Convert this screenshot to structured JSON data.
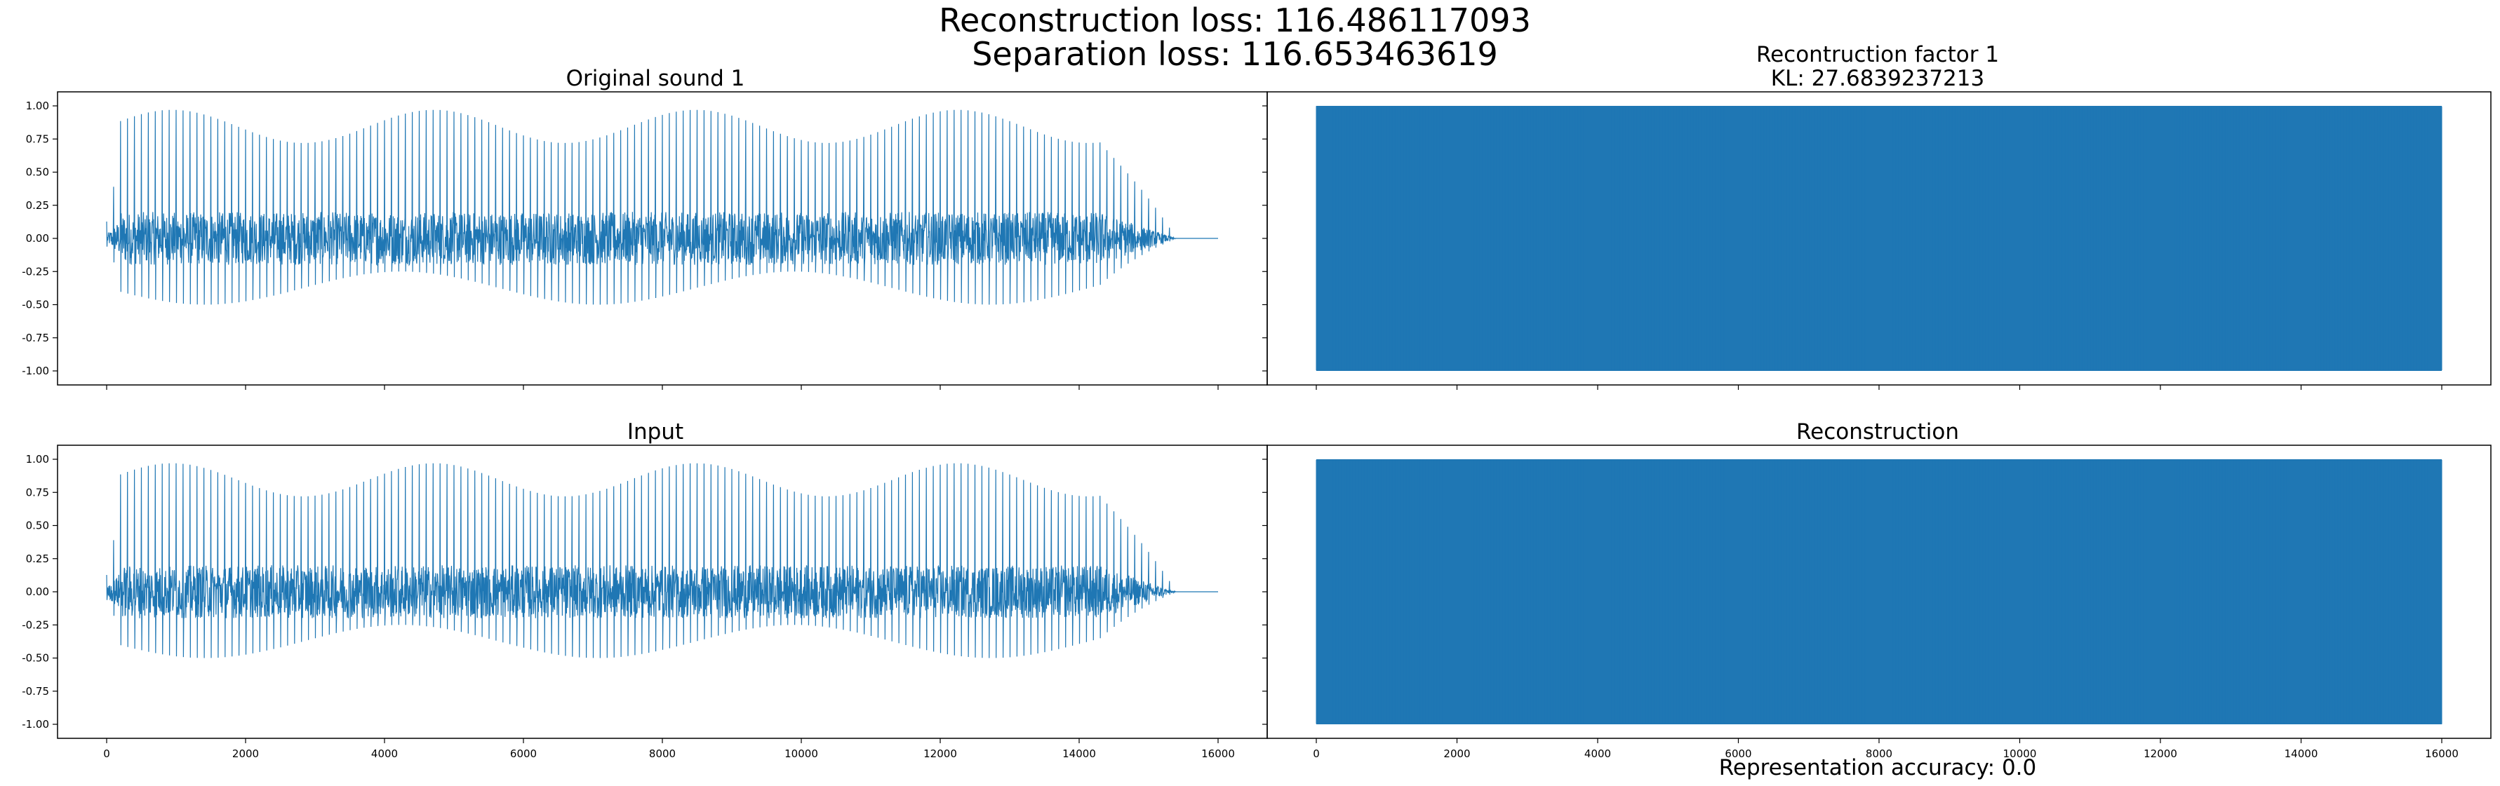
{
  "figure": {
    "suptitle_line1": "Reconstruction loss: 116.486117093",
    "suptitle_line2": "Separation loss: 116.653463619",
    "footer": "Representation accuracy: 0.0"
  },
  "colors": {
    "series": "#1f77b4",
    "axes": "#000000",
    "background": "#ffffff"
  },
  "chart_data": [
    {
      "type": "line",
      "title": "Original sound 1",
      "xlim": [
        0,
        16000
      ],
      "ylim": [
        -1.0,
        1.0
      ],
      "x_ticks": [],
      "y_ticks": [
        "1.00",
        "0.75",
        "0.50",
        "0.25",
        "0.00",
        "-0.25",
        "-0.50",
        "-0.75",
        "-1.00"
      ],
      "signal": {
        "kind": "periodic_pulses",
        "start": 0,
        "end": 16000,
        "decay_start": 14300,
        "period": 100,
        "peak_max": 0.97,
        "peak_min": 0.72,
        "trough_min": -0.5,
        "body_amplitude": 0.2
      }
    },
    {
      "type": "line",
      "title_line1": "Recontruction factor 1",
      "title_line2": "KL: 27.6839237213",
      "xlim": [
        0,
        16000
      ],
      "ylim": [
        -1.0,
        1.0
      ],
      "x_ticks": [],
      "y_ticks": [],
      "signal": {
        "kind": "dense_noise",
        "start": 0,
        "end": 16000,
        "max": 1.0,
        "min": -1.0
      }
    },
    {
      "type": "line",
      "title": "Input",
      "xlim": [
        0,
        16000
      ],
      "ylim": [
        -1.0,
        1.0
      ],
      "x_ticks": [
        "0",
        "2000",
        "4000",
        "6000",
        "8000",
        "10000",
        "12000",
        "14000",
        "16000"
      ],
      "y_ticks": [
        "1.00",
        "0.75",
        "0.50",
        "0.25",
        "0.00",
        "-0.25",
        "-0.50",
        "-0.75",
        "-1.00"
      ],
      "signal": {
        "kind": "periodic_pulses",
        "start": 0,
        "end": 16000,
        "decay_start": 14300,
        "period": 100,
        "peak_max": 0.97,
        "peak_min": 0.72,
        "trough_min": -0.5,
        "body_amplitude": 0.2
      }
    },
    {
      "type": "line",
      "title": "Reconstruction",
      "xlim": [
        0,
        16000
      ],
      "ylim": [
        -1.0,
        1.0
      ],
      "x_ticks": [
        "0",
        "2000",
        "4000",
        "6000",
        "8000",
        "10000",
        "12000",
        "14000",
        "16000"
      ],
      "y_ticks": [],
      "signal": {
        "kind": "dense_noise",
        "start": 0,
        "end": 16000,
        "max": 1.0,
        "min": -1.0
      }
    }
  ]
}
